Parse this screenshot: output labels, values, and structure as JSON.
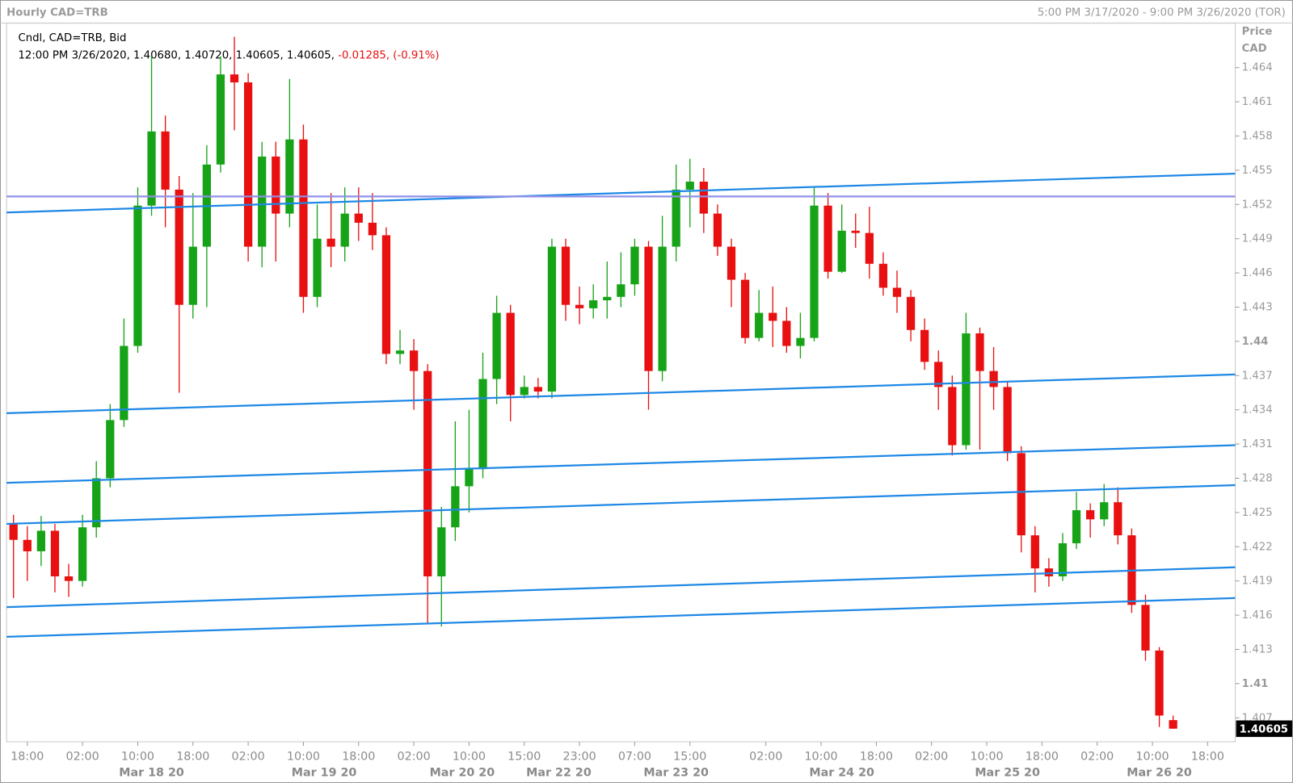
{
  "chart_data": {
    "type": "candlestick",
    "title": "Hourly CAD=TRB",
    "range_label": "5:00 PM 3/17/2020 - 9:00 PM 3/26/2020 (TOR)",
    "legend_label": "Cndl, CAD=TRB, Bid",
    "ohlc_label": "12:00 PM 3/26/2020, 1.40680, 1.40720, 1.40605, 1.40605,",
    "change_label": "-0.01285, (-0.91%)",
    "y_axis_label": "Price",
    "y_axis_unit": "CAD",
    "last_price_label": "1.40605",
    "up_color": "#17a317",
    "down_color": "#e81010",
    "x": [
      0,
      2,
      4,
      6,
      8,
      10,
      12,
      14,
      16,
      18,
      20,
      22,
      24,
      26,
      28,
      30,
      32,
      34,
      36,
      38,
      40,
      42,
      44,
      46,
      48,
      50,
      52,
      54,
      56,
      58,
      60,
      62,
      64,
      66,
      68,
      70,
      72,
      74,
      76,
      78,
      80,
      82,
      84,
      86,
      88,
      90,
      92,
      94,
      96,
      98,
      100,
      102,
      104,
      106,
      108,
      110,
      112,
      114,
      116,
      118,
      120,
      122,
      124,
      126,
      128,
      130,
      132,
      134,
      136,
      138,
      140,
      142,
      144,
      146,
      148,
      150,
      152,
      154,
      156,
      158,
      160,
      162,
      164,
      166,
      168
    ],
    "open": [
      1.424,
      1.4226,
      1.4216,
      1.4234,
      1.4194,
      1.419,
      1.4237,
      1.428,
      1.4331,
      1.4396,
      1.4519,
      1.4584,
      1.4533,
      1.4432,
      1.4483,
      1.4555,
      1.4634,
      1.4627,
      1.4483,
      1.4562,
      1.4512,
      1.4577,
      1.4439,
      1.449,
      1.4483,
      1.4512,
      1.4504,
      1.4493,
      1.4389,
      1.4392,
      1.4374,
      1.4194,
      1.4237,
      1.4273,
      1.4288,
      1.4367,
      1.4425,
      1.4353,
      1.436,
      1.4356,
      1.4483,
      1.4432,
      1.4429,
      1.4436,
      1.4439,
      1.445,
      1.4483,
      1.4374,
      1.4483,
      1.4533,
      1.454,
      1.4512,
      1.4483,
      1.4454,
      1.4403,
      1.4425,
      1.4418,
      1.4396,
      1.4403,
      1.4519,
      1.4461,
      1.4497,
      1.4495,
      1.4468,
      1.4447,
      1.4439,
      1.441,
      1.4382,
      1.436,
      1.4309,
      1.4407,
      1.4374,
      1.436,
      1.4302,
      1.423,
      1.4201,
      1.4194,
      1.4223,
      1.4252,
      1.4244,
      1.4259,
      1.423,
      1.4169,
      1.4129,
      1.4068
    ],
    "high": [
      1.4248,
      1.4238,
      1.4247,
      1.424,
      1.4205,
      1.4248,
      1.4295,
      1.4345,
      1.442,
      1.4535,
      1.465,
      1.4598,
      1.4545,
      1.453,
      1.4572,
      1.465,
      1.4667,
      1.4635,
      1.4575,
      1.4575,
      1.463,
      1.459,
      1.452,
      1.453,
      1.4535,
      1.4535,
      1.453,
      1.45,
      1.441,
      1.4402,
      1.438,
      1.4255,
      1.433,
      1.434,
      1.439,
      1.444,
      1.4432,
      1.437,
      1.4368,
      1.449,
      1.449,
      1.4448,
      1.445,
      1.447,
      1.4478,
      1.449,
      1.4488,
      1.451,
      1.4555,
      1.456,
      1.4552,
      1.452,
      1.449,
      1.446,
      1.4445,
      1.4448,
      1.443,
      1.4425,
      1.4535,
      1.453,
      1.452,
      1.4512,
      1.4518,
      1.4478,
      1.4462,
      1.4445,
      1.442,
      1.4392,
      1.437,
      1.4425,
      1.4412,
      1.4395,
      1.4365,
      1.4308,
      1.4238,
      1.421,
      1.4232,
      1.4268,
      1.4258,
      1.4275,
      1.4272,
      1.4236,
      1.4178,
      1.4132,
      1.4072
    ],
    "low": [
      1.4175,
      1.419,
      1.4203,
      1.418,
      1.4176,
      1.4185,
      1.4228,
      1.4272,
      1.4325,
      1.439,
      1.451,
      1.45,
      1.4355,
      1.442,
      1.443,
      1.4548,
      1.4585,
      1.447,
      1.4465,
      1.447,
      1.45,
      1.4425,
      1.443,
      1.4465,
      1.447,
      1.4488,
      1.448,
      1.438,
      1.438,
      1.434,
      1.4152,
      1.415,
      1.4225,
      1.425,
      1.428,
      1.4345,
      1.433,
      1.435,
      1.435,
      1.435,
      1.4418,
      1.4415,
      1.442,
      1.442,
      1.443,
      1.444,
      1.434,
      1.4365,
      1.447,
      1.45,
      1.4495,
      1.4475,
      1.443,
      1.4398,
      1.44,
      1.4395,
      1.439,
      1.4385,
      1.44,
      1.4455,
      1.446,
      1.4482,
      1.4455,
      1.444,
      1.4425,
      1.44,
      1.4375,
      1.434,
      1.43,
      1.4305,
      1.4305,
      1.434,
      1.4295,
      1.4215,
      1.418,
      1.4185,
      1.419,
      1.4218,
      1.4228,
      1.4238,
      1.4222,
      1.4162,
      1.412,
      1.4062,
      1.40605
    ],
    "close": [
      1.4226,
      1.4216,
      1.4234,
      1.4194,
      1.419,
      1.4237,
      1.428,
      1.4331,
      1.4396,
      1.4519,
      1.4584,
      1.4533,
      1.4432,
      1.4483,
      1.4555,
      1.4634,
      1.4627,
      1.4483,
      1.4562,
      1.4512,
      1.4577,
      1.4439,
      1.449,
      1.4483,
      1.4512,
      1.4504,
      1.4493,
      1.4389,
      1.4392,
      1.4374,
      1.4194,
      1.4237,
      1.4273,
      1.4288,
      1.4367,
      1.4425,
      1.4353,
      1.436,
      1.4356,
      1.4483,
      1.4432,
      1.4429,
      1.4436,
      1.4439,
      1.445,
      1.4483,
      1.4374,
      1.4483,
      1.4533,
      1.454,
      1.4512,
      1.4483,
      1.4454,
      1.4403,
      1.4425,
      1.4418,
      1.4396,
      1.4403,
      1.4519,
      1.4461,
      1.4497,
      1.4495,
      1.4468,
      1.4447,
      1.4439,
      1.441,
      1.4382,
      1.436,
      1.4309,
      1.4407,
      1.4374,
      1.436,
      1.4302,
      1.423,
      1.4201,
      1.4194,
      1.4223,
      1.4252,
      1.4244,
      1.4259,
      1.423,
      1.4169,
      1.4129,
      1.4072,
      1.40605
    ],
    "xlim": [
      -1,
      177
    ],
    "ylim": [
      1.4049,
      1.4679
    ],
    "yticks": [
      1.464,
      1.461,
      1.458,
      1.455,
      1.452,
      1.449,
      1.446,
      1.443,
      1.44,
      1.437,
      1.434,
      1.431,
      1.428,
      1.425,
      1.422,
      1.419,
      1.416,
      1.413,
      1.41,
      1.407
    ],
    "xticks": [
      {
        "value": 2,
        "label": "18:00"
      },
      {
        "value": 10,
        "label": "02:00"
      },
      {
        "value": 18,
        "label": "10:00"
      },
      {
        "value": 26,
        "label": "18:00"
      },
      {
        "value": 34,
        "label": "02:00"
      },
      {
        "value": 42,
        "label": "10:00"
      },
      {
        "value": 50,
        "label": "18:00"
      },
      {
        "value": 58,
        "label": "02:00"
      },
      {
        "value": 66,
        "label": "10:00"
      },
      {
        "value": 74,
        "label": "15:00"
      },
      {
        "value": 82,
        "label": "23:00"
      },
      {
        "value": 90,
        "label": "07:00"
      },
      {
        "value": 98,
        "label": "15:00"
      },
      {
        "value": 109,
        "label": "02:00"
      },
      {
        "value": 117,
        "label": "10:00"
      },
      {
        "value": 125,
        "label": "18:00"
      },
      {
        "value": 133,
        "label": "02:00"
      },
      {
        "value": 141,
        "label": "10:00"
      },
      {
        "value": 149,
        "label": "18:00"
      },
      {
        "value": 157,
        "label": "02:00"
      },
      {
        "value": 165,
        "label": "10:00"
      },
      {
        "value": 173,
        "label": "18:00"
      }
    ],
    "date_labels": [
      {
        "value": 20,
        "label": "Mar 18 20"
      },
      {
        "value": 45,
        "label": "Mar 19 20"
      },
      {
        "value": 65,
        "label": "Mar 20 20"
      },
      {
        "value": 79,
        "label": "Mar 22 20"
      },
      {
        "value": 96,
        "label": "Mar 23 20"
      },
      {
        "value": 120,
        "label": "Mar 24 20"
      },
      {
        "value": 144,
        "label": "Mar 25 20"
      },
      {
        "value": 166,
        "label": "Mar 26 20"
      }
    ],
    "trend_line_color": "#1e88e5",
    "trend_lines": [
      {
        "start": [
          -1,
          1.4513
        ],
        "end": [
          177,
          1.4547
        ]
      },
      {
        "start": [
          -1,
          1.4337
        ],
        "end": [
          177,
          1.4371
        ]
      },
      {
        "start": [
          -1,
          1.4276
        ],
        "end": [
          177,
          1.4309
        ]
      },
      {
        "start": [
          -1,
          1.424
        ],
        "end": [
          177,
          1.4274
        ]
      },
      {
        "start": [
          -1,
          1.4167
        ],
        "end": [
          177,
          1.4202
        ]
      },
      {
        "start": [
          -1,
          1.4141
        ],
        "end": [
          177,
          1.4175
        ]
      }
    ],
    "horizontal_line": 1.4527,
    "horizontal_line_color": "#8f8fe8"
  }
}
